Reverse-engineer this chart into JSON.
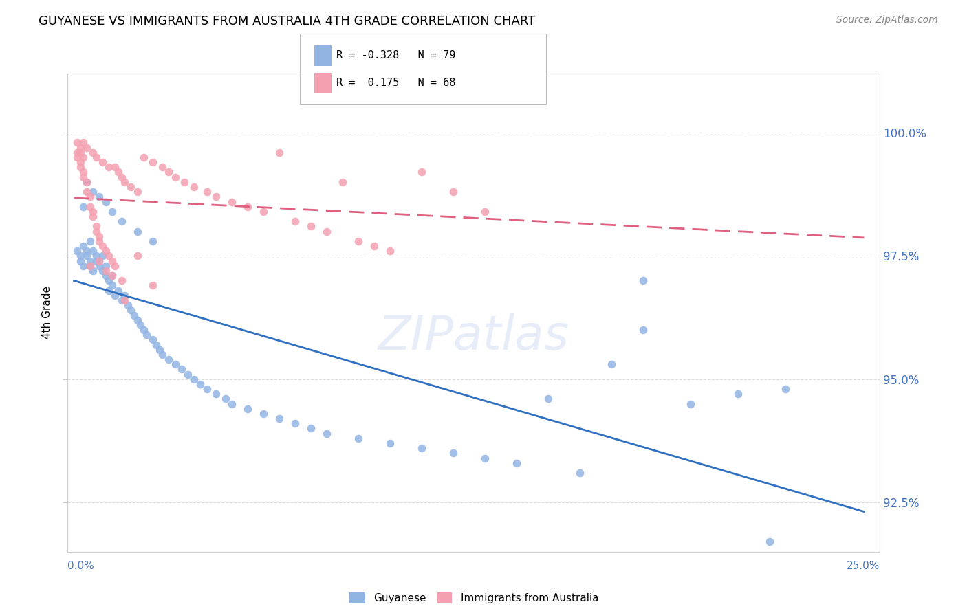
{
  "title": "GUYANESE VS IMMIGRANTS FROM AUSTRALIA 4TH GRADE CORRELATION CHART",
  "source": "Source: ZipAtlas.com",
  "ylabel": "4th Grade",
  "ylim": [
    91.5,
    101.2
  ],
  "xlim": [
    -0.002,
    0.255
  ],
  "ytick_values": [
    92.5,
    95.0,
    97.5,
    100.0
  ],
  "guyanese_color": "#92b4e3",
  "australia_color": "#f4a0b0",
  "trend_blue": "#3070c0",
  "trend_pink": "#e06080",
  "watermark": "ZIPatlas",
  "guyanese_points_x": [
    0.001,
    0.002,
    0.002,
    0.003,
    0.003,
    0.004,
    0.004,
    0.005,
    0.005,
    0.005,
    0.006,
    0.006,
    0.007,
    0.007,
    0.008,
    0.008,
    0.009,
    0.009,
    0.01,
    0.01,
    0.011,
    0.011,
    0.012,
    0.012,
    0.013,
    0.014,
    0.015,
    0.016,
    0.017,
    0.018,
    0.019,
    0.02,
    0.021,
    0.022,
    0.023,
    0.025,
    0.026,
    0.027,
    0.028,
    0.03,
    0.032,
    0.034,
    0.036,
    0.038,
    0.04,
    0.042,
    0.045,
    0.048,
    0.05,
    0.055,
    0.06,
    0.065,
    0.07,
    0.075,
    0.08,
    0.09,
    0.1,
    0.11,
    0.12,
    0.13,
    0.14,
    0.15,
    0.16,
    0.17,
    0.18,
    0.195,
    0.21,
    0.225,
    0.003,
    0.004,
    0.006,
    0.008,
    0.01,
    0.012,
    0.015,
    0.02,
    0.025,
    0.18,
    0.22
  ],
  "guyanese_points_y": [
    97.6,
    97.5,
    97.4,
    97.7,
    97.3,
    97.5,
    97.6,
    97.4,
    97.3,
    97.8,
    97.2,
    97.6,
    97.4,
    97.5,
    97.3,
    97.4,
    97.2,
    97.5,
    97.1,
    97.3,
    96.8,
    97.0,
    96.9,
    97.1,
    96.7,
    96.8,
    96.6,
    96.7,
    96.5,
    96.4,
    96.3,
    96.2,
    96.1,
    96.0,
    95.9,
    95.8,
    95.7,
    95.6,
    95.5,
    95.4,
    95.3,
    95.2,
    95.1,
    95.0,
    94.9,
    94.8,
    94.7,
    94.6,
    94.5,
    94.4,
    94.3,
    94.2,
    94.1,
    94.0,
    93.9,
    93.8,
    93.7,
    93.6,
    93.5,
    93.4,
    93.3,
    94.6,
    93.1,
    95.3,
    96.0,
    94.5,
    94.7,
    94.8,
    98.5,
    99.0,
    98.8,
    98.7,
    98.6,
    98.4,
    98.2,
    98.0,
    97.8,
    97.0,
    91.7
  ],
  "australia_points_x": [
    0.001,
    0.001,
    0.001,
    0.002,
    0.002,
    0.002,
    0.002,
    0.003,
    0.003,
    0.003,
    0.004,
    0.004,
    0.005,
    0.005,
    0.006,
    0.006,
    0.007,
    0.007,
    0.008,
    0.008,
    0.009,
    0.01,
    0.011,
    0.012,
    0.013,
    0.014,
    0.015,
    0.016,
    0.018,
    0.02,
    0.022,
    0.025,
    0.028,
    0.03,
    0.032,
    0.035,
    0.038,
    0.042,
    0.045,
    0.05,
    0.055,
    0.06,
    0.065,
    0.07,
    0.075,
    0.08,
    0.085,
    0.09,
    0.095,
    0.1,
    0.11,
    0.12,
    0.13,
    0.005,
    0.008,
    0.01,
    0.012,
    0.015,
    0.02,
    0.025,
    0.003,
    0.004,
    0.006,
    0.007,
    0.009,
    0.011,
    0.013,
    0.016
  ],
  "australia_points_y": [
    99.8,
    99.6,
    99.5,
    99.7,
    99.4,
    99.3,
    99.6,
    99.2,
    99.5,
    99.1,
    99.0,
    98.8,
    98.7,
    98.5,
    98.4,
    98.3,
    98.1,
    98.0,
    97.9,
    97.8,
    97.7,
    97.6,
    97.5,
    97.4,
    99.3,
    99.2,
    99.1,
    99.0,
    98.9,
    98.8,
    99.5,
    99.4,
    99.3,
    99.2,
    99.1,
    99.0,
    98.9,
    98.8,
    98.7,
    98.6,
    98.5,
    98.4,
    99.6,
    98.2,
    98.1,
    98.0,
    99.0,
    97.8,
    97.7,
    97.6,
    99.2,
    98.8,
    98.4,
    97.3,
    97.4,
    97.2,
    97.1,
    97.0,
    97.5,
    96.9,
    99.8,
    99.7,
    99.6,
    99.5,
    99.4,
    99.3,
    97.3,
    96.6
  ]
}
